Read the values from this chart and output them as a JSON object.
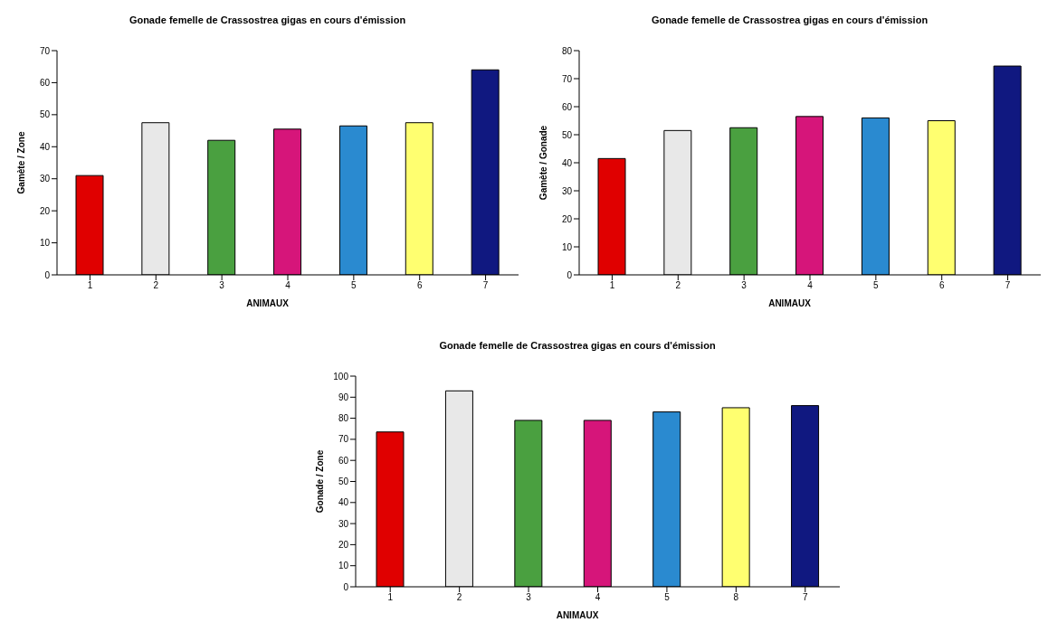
{
  "chart_data": [
    {
      "type": "bar",
      "title": "Gonade femelle de Crassostrea gigas en cours d'émission",
      "xlabel": "ANIMAUX",
      "ylabel": "Gamète / Zone",
      "categories": [
        "1",
        "2",
        "3",
        "4",
        "5",
        "6",
        "7"
      ],
      "values": [
        31,
        47.5,
        42,
        45.5,
        46.5,
        47.5,
        64
      ],
      "colors": [
        "#e00000",
        "#e8e8e8",
        "#4aa040",
        "#d6157a",
        "#2a8ad0",
        "#ffff70",
        "#101880"
      ],
      "ylim": [
        0,
        70
      ],
      "yticks": [
        0,
        10,
        20,
        30,
        40,
        50,
        60,
        70
      ]
    },
    {
      "type": "bar",
      "title": "Gonade femelle de Crassostrea gigas en cours d'émission",
      "xlabel": "ANIMAUX",
      "ylabel": "Gamète / Gonade",
      "categories": [
        "1",
        "2",
        "3",
        "4",
        "5",
        "6",
        "7"
      ],
      "values": [
        41.5,
        51.5,
        52.5,
        56.5,
        56,
        55,
        74.5
      ],
      "colors": [
        "#e00000",
        "#e8e8e8",
        "#4aa040",
        "#d6157a",
        "#2a8ad0",
        "#ffff70",
        "#101880"
      ],
      "ylim": [
        0,
        80
      ],
      "yticks": [
        0,
        10,
        20,
        30,
        40,
        50,
        60,
        70,
        80
      ]
    },
    {
      "type": "bar",
      "title": "Gonade femelle de Crassostrea gigas en cours d'émission",
      "xlabel": "ANIMAUX",
      "ylabel": "Gonade / Zone",
      "categories": [
        "1",
        "2",
        "3",
        "4",
        "5",
        "8",
        "7"
      ],
      "values": [
        73.5,
        93,
        79,
        79,
        83,
        85,
        86
      ],
      "colors": [
        "#e00000",
        "#e8e8e8",
        "#4aa040",
        "#d6157a",
        "#2a8ad0",
        "#ffff70",
        "#101880"
      ],
      "ylim": [
        0,
        100
      ],
      "yticks": [
        0,
        10,
        20,
        30,
        40,
        50,
        60,
        70,
        80,
        90,
        100
      ]
    }
  ]
}
